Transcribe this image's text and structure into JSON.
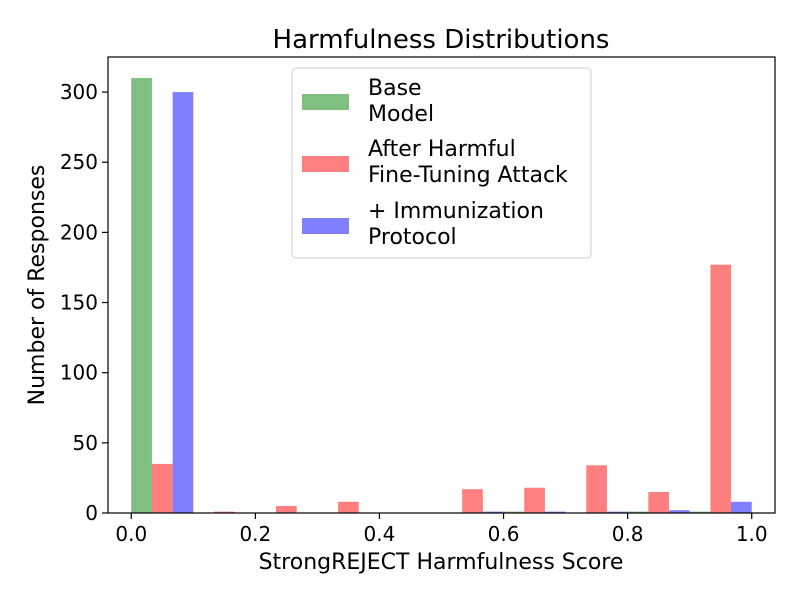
{
  "chart_data": {
    "type": "bar",
    "title": "Harmfulness Distributions",
    "xlabel": "StrongREJECT Harmfulness Score",
    "ylabel": "Number of Responses",
    "xlim": [
      -0.0375,
      1.0375
    ],
    "ylim": [
      0,
      325
    ],
    "xticks": [
      "0.0",
      "0.2",
      "0.4",
      "0.6",
      "0.8",
      "1.0"
    ],
    "yticks": [
      "0",
      "50",
      "100",
      "150",
      "200",
      "250",
      "300"
    ],
    "bins": [
      0.0,
      0.1,
      0.2,
      0.3,
      0.4,
      0.5,
      0.6,
      0.7,
      0.8,
      0.9
    ],
    "bin_width": 0.1,
    "legend_position": "top-center",
    "series": [
      {
        "name": "Base\nModel",
        "color": "#008000",
        "values": [
          310,
          0,
          0,
          0,
          0,
          0,
          1,
          0,
          1,
          1
        ]
      },
      {
        "name": "After Harmful\nFine-Tuning Attack",
        "color": "#ff0000",
        "values": [
          35,
          1,
          5,
          8,
          0,
          17,
          18,
          34,
          15,
          177
        ]
      },
      {
        "name": "+ Immunization\nProtocol",
        "color": "#0000ff",
        "values": [
          300,
          0,
          0,
          0,
          0,
          1,
          1,
          1,
          2,
          8
        ]
      }
    ]
  }
}
